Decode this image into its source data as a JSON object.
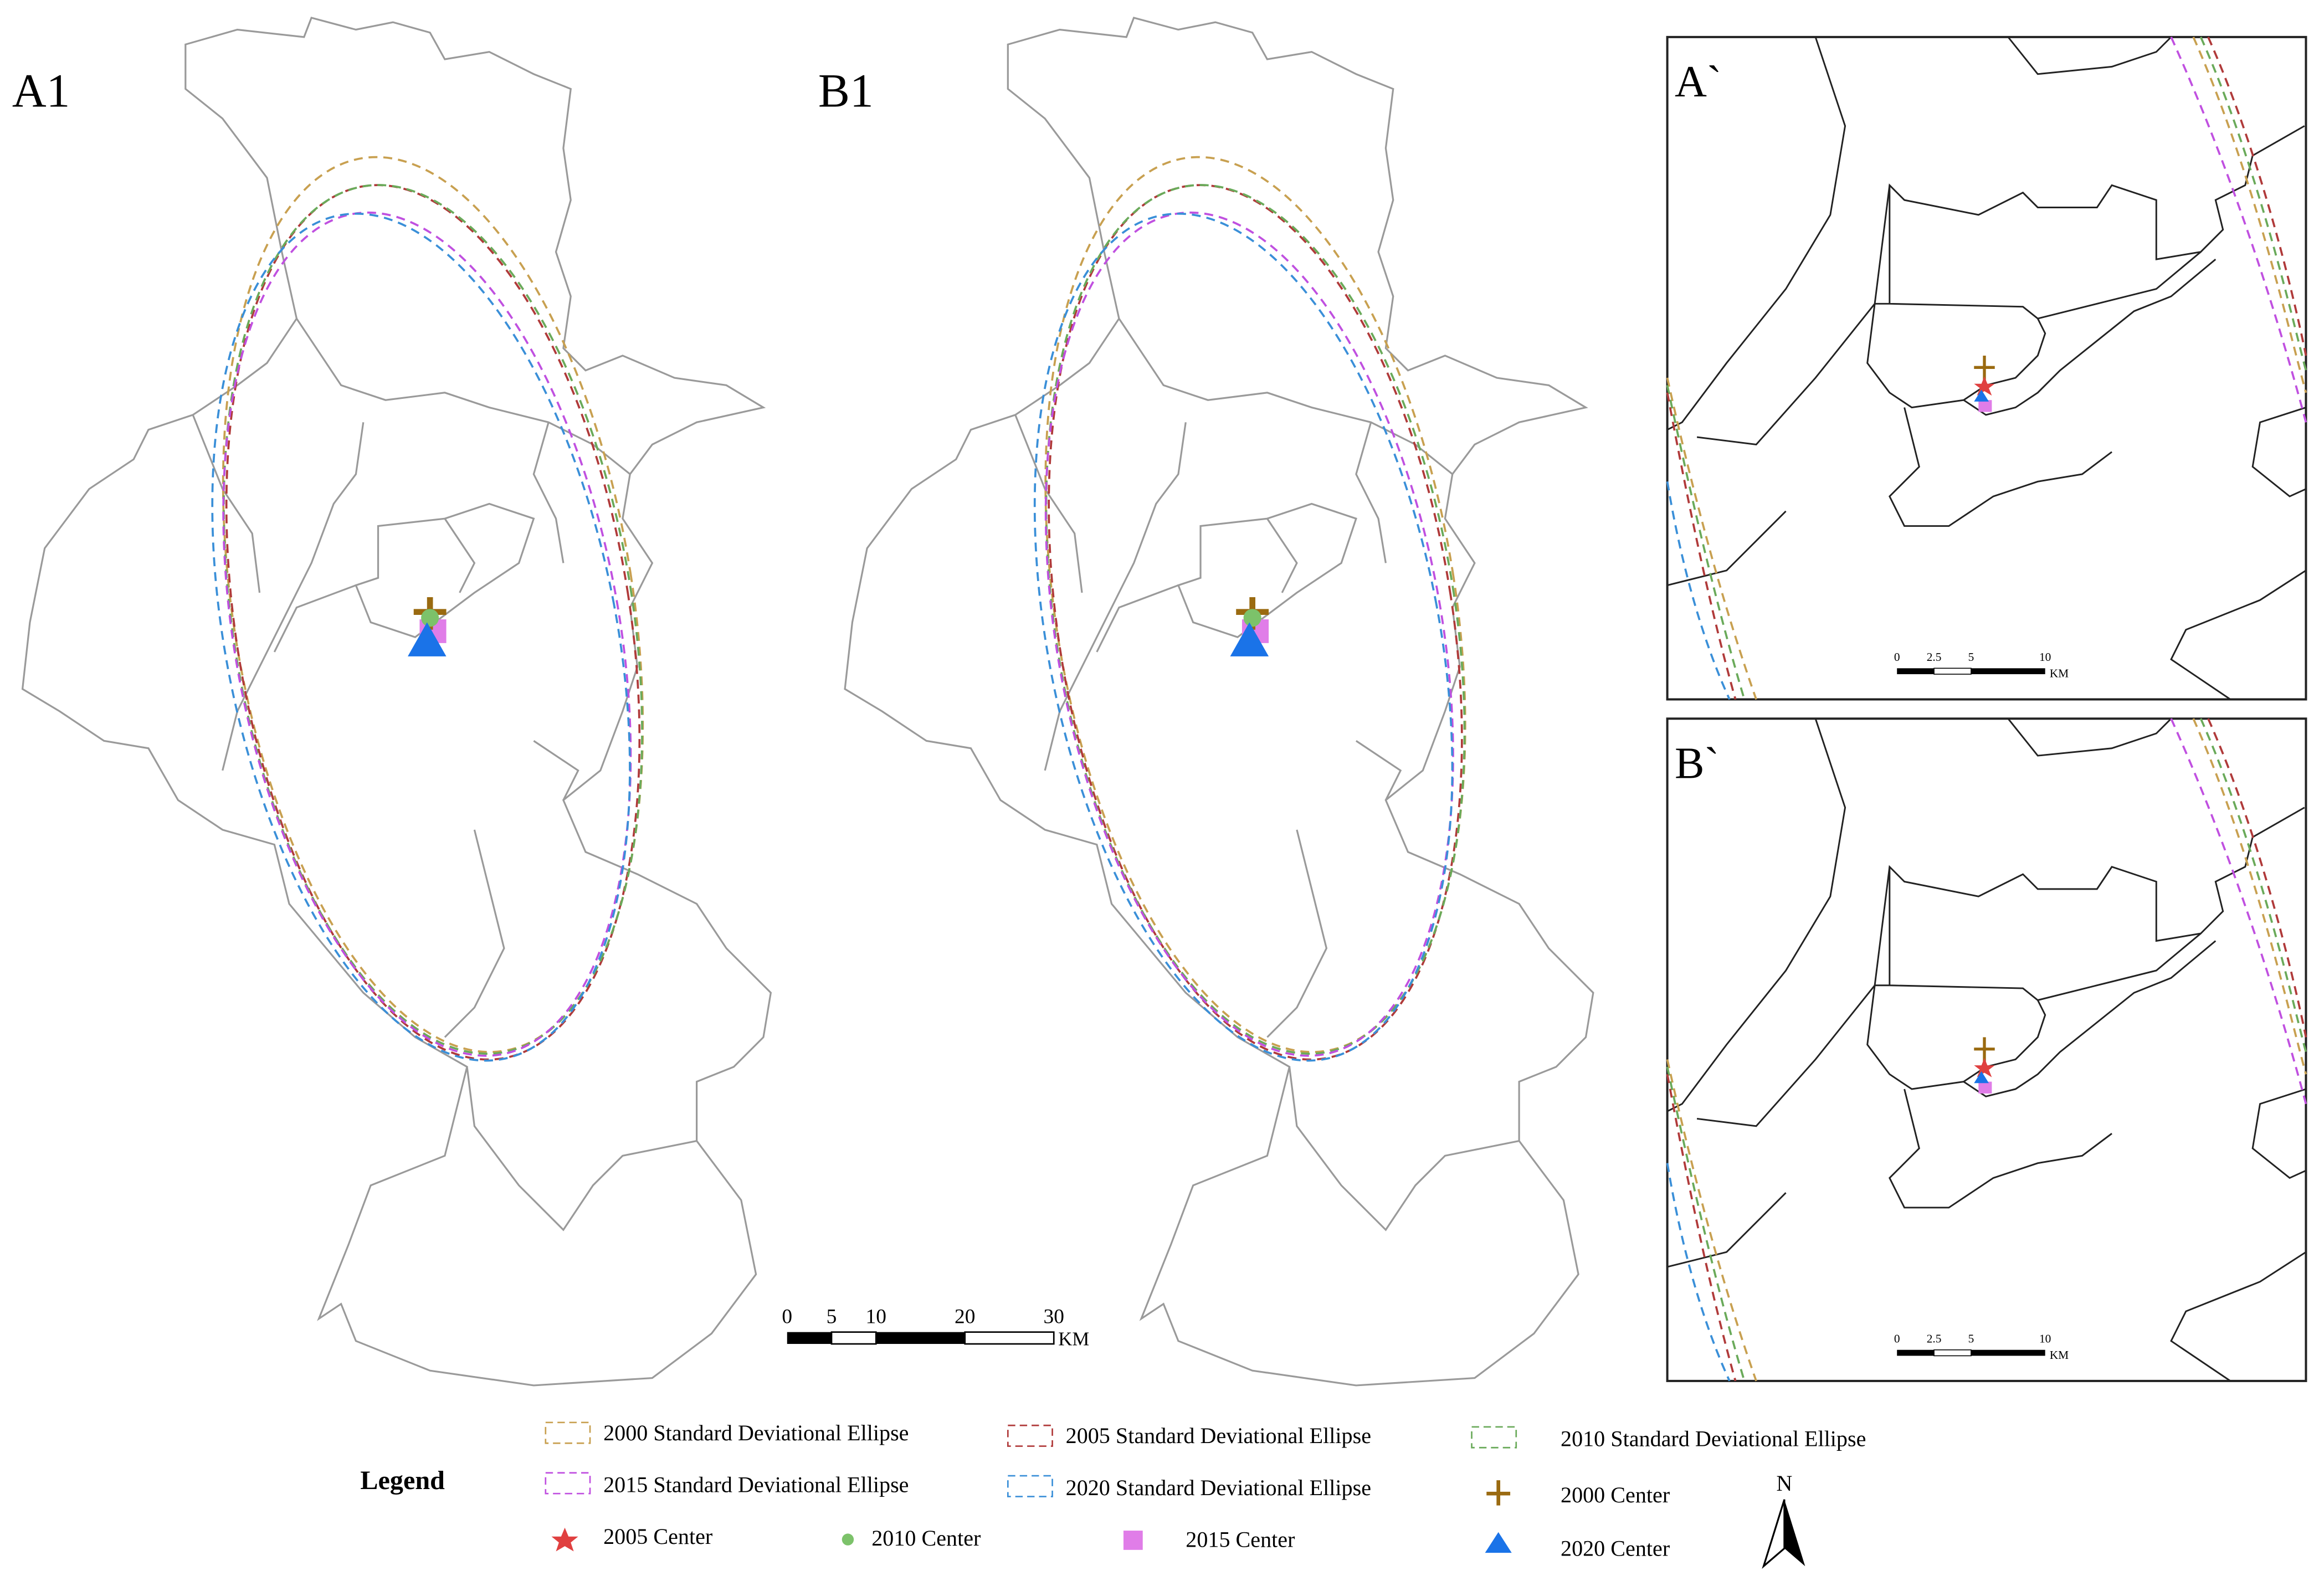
{
  "panels": [
    {
      "label": "A1"
    },
    {
      "label": "B1"
    },
    {
      "label": "A`"
    },
    {
      "label": "B`"
    }
  ],
  "main_scale": {
    "ticks": [
      "0",
      "5",
      "10",
      "20",
      "30"
    ],
    "unit": "KM"
  },
  "inset_scale": {
    "ticks": [
      "0",
      "2.5",
      "5",
      "10"
    ],
    "unit": "KM"
  },
  "legend": {
    "title": "Legend",
    "items": [
      "2000 Standard Deviational Ellipse",
      "2005 Standard Deviational Ellipse",
      "2010 Standard Deviational Ellipse",
      "2015 Standard Deviational Ellipse",
      "2020 Standard Deviational Ellipse",
      "2000 Center",
      "2005 Center",
      "2010 Center",
      "2015 Center",
      "2020 Center"
    ]
  },
  "north": "N"
}
